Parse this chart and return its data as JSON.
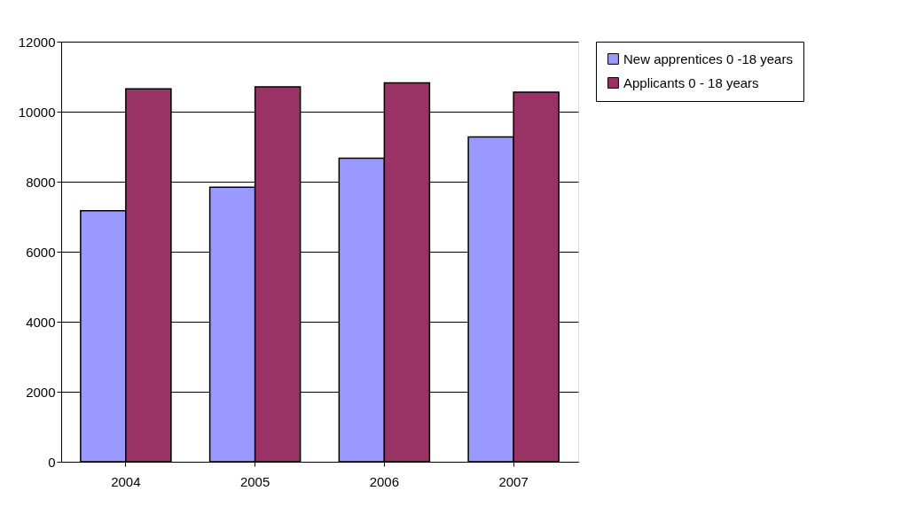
{
  "chart_data": {
    "type": "bar",
    "categories": [
      "2004",
      "2005",
      "2006",
      "2007"
    ],
    "series": [
      {
        "name": "New apprentices 0 -18 years",
        "color": "#9999ff",
        "values": [
          7170,
          7840,
          8670,
          9280
        ]
      },
      {
        "name": "Applicants 0 - 18 years",
        "color": "#993366",
        "values": [
          10650,
          10710,
          10820,
          10560
        ]
      }
    ],
    "ylim": [
      0,
      12000
    ],
    "yticks": [
      0,
      2000,
      4000,
      6000,
      8000,
      10000,
      12000
    ],
    "grid": "y",
    "legend": "right"
  }
}
